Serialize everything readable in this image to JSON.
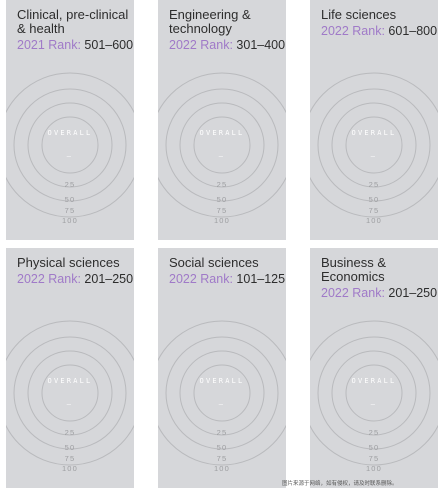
{
  "cards": [
    {
      "subject": "Clinical, pre-clinical & health",
      "rank_label": "2021 Rank:",
      "rank_value": "501–600",
      "overall": "OVERALL",
      "dash": "—",
      "ticks": [
        "25",
        "50",
        "75",
        "100"
      ]
    },
    {
      "subject": "Engineering & technology",
      "rank_label": "2022 Rank:",
      "rank_value": "301–400",
      "overall": "OVERALL",
      "dash": "—",
      "ticks": [
        "25",
        "50",
        "75",
        "100"
      ]
    },
    {
      "subject": "Life sciences",
      "rank_label": "2022 Rank:",
      "rank_value": "601–800",
      "overall": "OVERALL",
      "dash": "—",
      "ticks": [
        "25",
        "50",
        "75",
        "100"
      ]
    },
    {
      "subject": "Physical sciences",
      "rank_label": "2022 Rank:",
      "rank_value": "201–250",
      "overall": "OVERALL",
      "dash": "—",
      "ticks": [
        "25",
        "50",
        "75",
        "100"
      ]
    },
    {
      "subject": "Social sciences",
      "rank_label": "2022 Rank:",
      "rank_value": "101–125",
      "overall": "OVERALL",
      "dash": "—",
      "ticks": [
        "25",
        "50",
        "75",
        "100"
      ]
    },
    {
      "subject": "Business & Economics",
      "rank_label": "2022 Rank:",
      "rank_value": "201–250",
      "overall": "OVERALL",
      "dash": "—",
      "ticks": [
        "25",
        "50",
        "75",
        "100"
      ]
    }
  ],
  "watermark": "图片来源于网络，如有侵权，请及时联系删除。",
  "colors": {
    "card_bg": "#d6d7da",
    "rank_label": "#a07ac8",
    "text": "#2d2d2d",
    "ring": "#b9babd",
    "tick": "#9d9ea1"
  }
}
